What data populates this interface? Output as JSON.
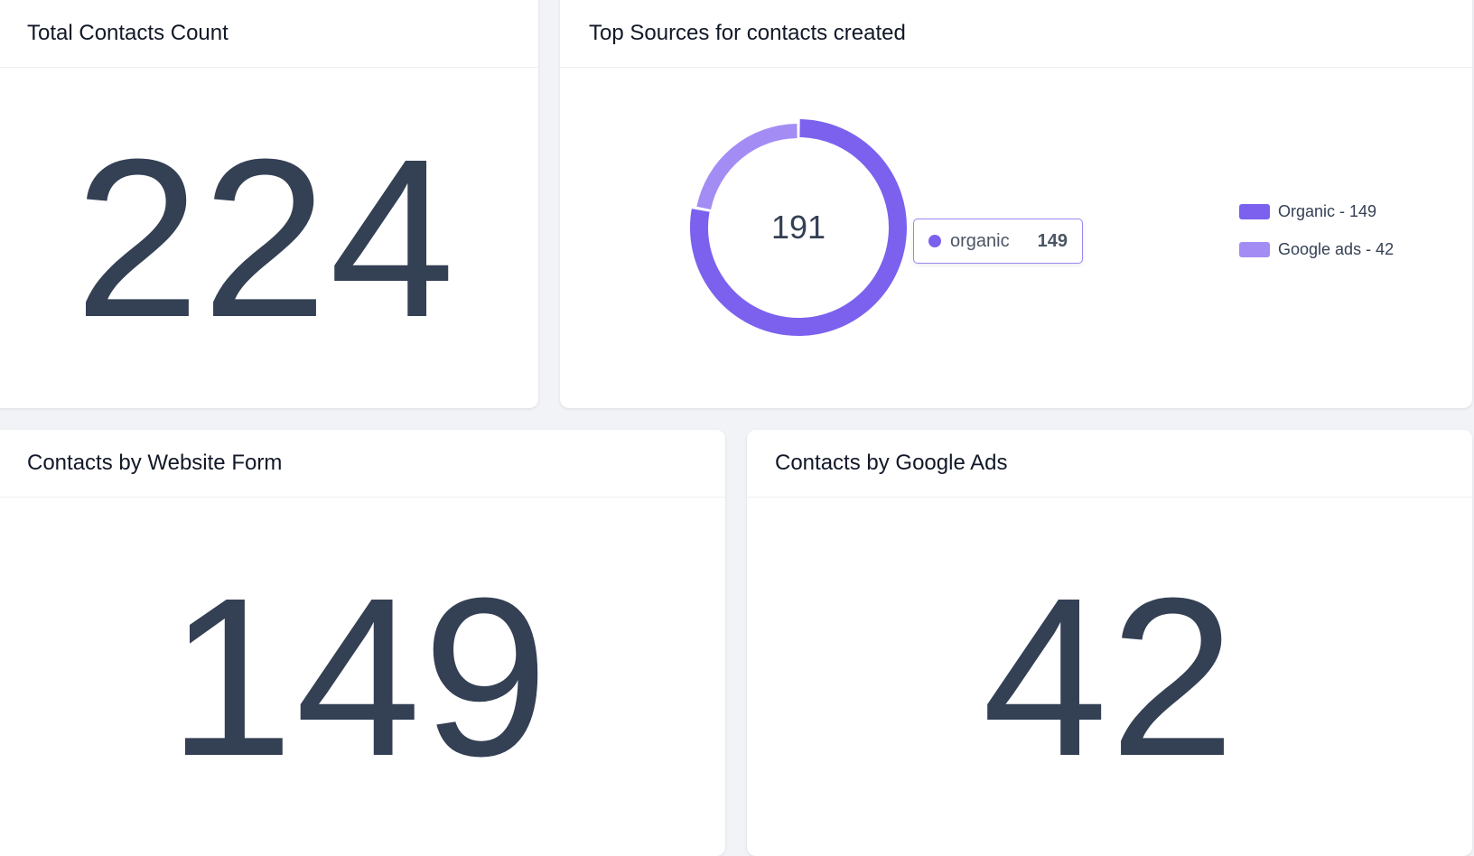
{
  "cards": {
    "total": {
      "title": "Total Contacts Count",
      "value": "224"
    },
    "sources": {
      "title": "Top Sources for contacts created"
    },
    "website": {
      "title": "Contacts by Website Form",
      "value": "149"
    },
    "google": {
      "title": "Contacts by Google Ads",
      "value": "42"
    }
  },
  "tooltip": {
    "label": "organic",
    "value": "149"
  },
  "legend": [
    {
      "label": "Organic - 149",
      "color": "#7b61ee"
    },
    {
      "label": "Google ads - 42",
      "color": "#a38df5"
    }
  ],
  "chart_data": {
    "type": "pie",
    "center_label": "191",
    "series": [
      {
        "name": "Organic",
        "value": 149,
        "color": "#7b61ee"
      },
      {
        "name": "Google ads",
        "value": 42,
        "color": "#a38df5"
      }
    ]
  }
}
